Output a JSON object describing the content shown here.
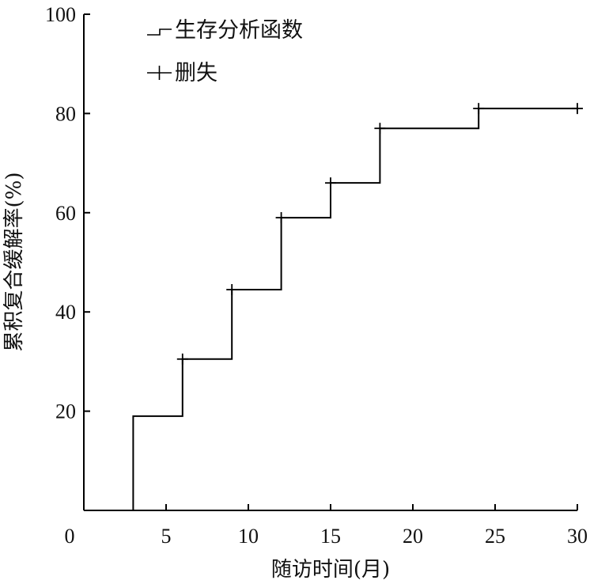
{
  "chart_data": {
    "type": "line",
    "step": true,
    "xlabel": "随访时间(月)",
    "ylabel": "累积复合缓解率(%)",
    "xlim": [
      0,
      30
    ],
    "ylim": [
      0,
      100
    ],
    "x_ticks": [
      0,
      5,
      10,
      15,
      20,
      25,
      30
    ],
    "y_ticks": [
      20,
      40,
      60,
      80,
      100
    ],
    "grid": false,
    "legend_position": "top-left",
    "series": [
      {
        "name": "生存分析函数",
        "x": [
          3,
          6,
          9,
          12,
          15,
          18,
          24,
          30
        ],
        "y": [
          19,
          30.5,
          44.5,
          59,
          66,
          77,
          81,
          81
        ]
      },
      {
        "name": "删失",
        "marker": "+",
        "x": [
          6,
          9,
          12,
          15,
          18,
          24,
          30
        ],
        "y": [
          30.5,
          44.5,
          59,
          66,
          77,
          81,
          81
        ]
      }
    ]
  }
}
